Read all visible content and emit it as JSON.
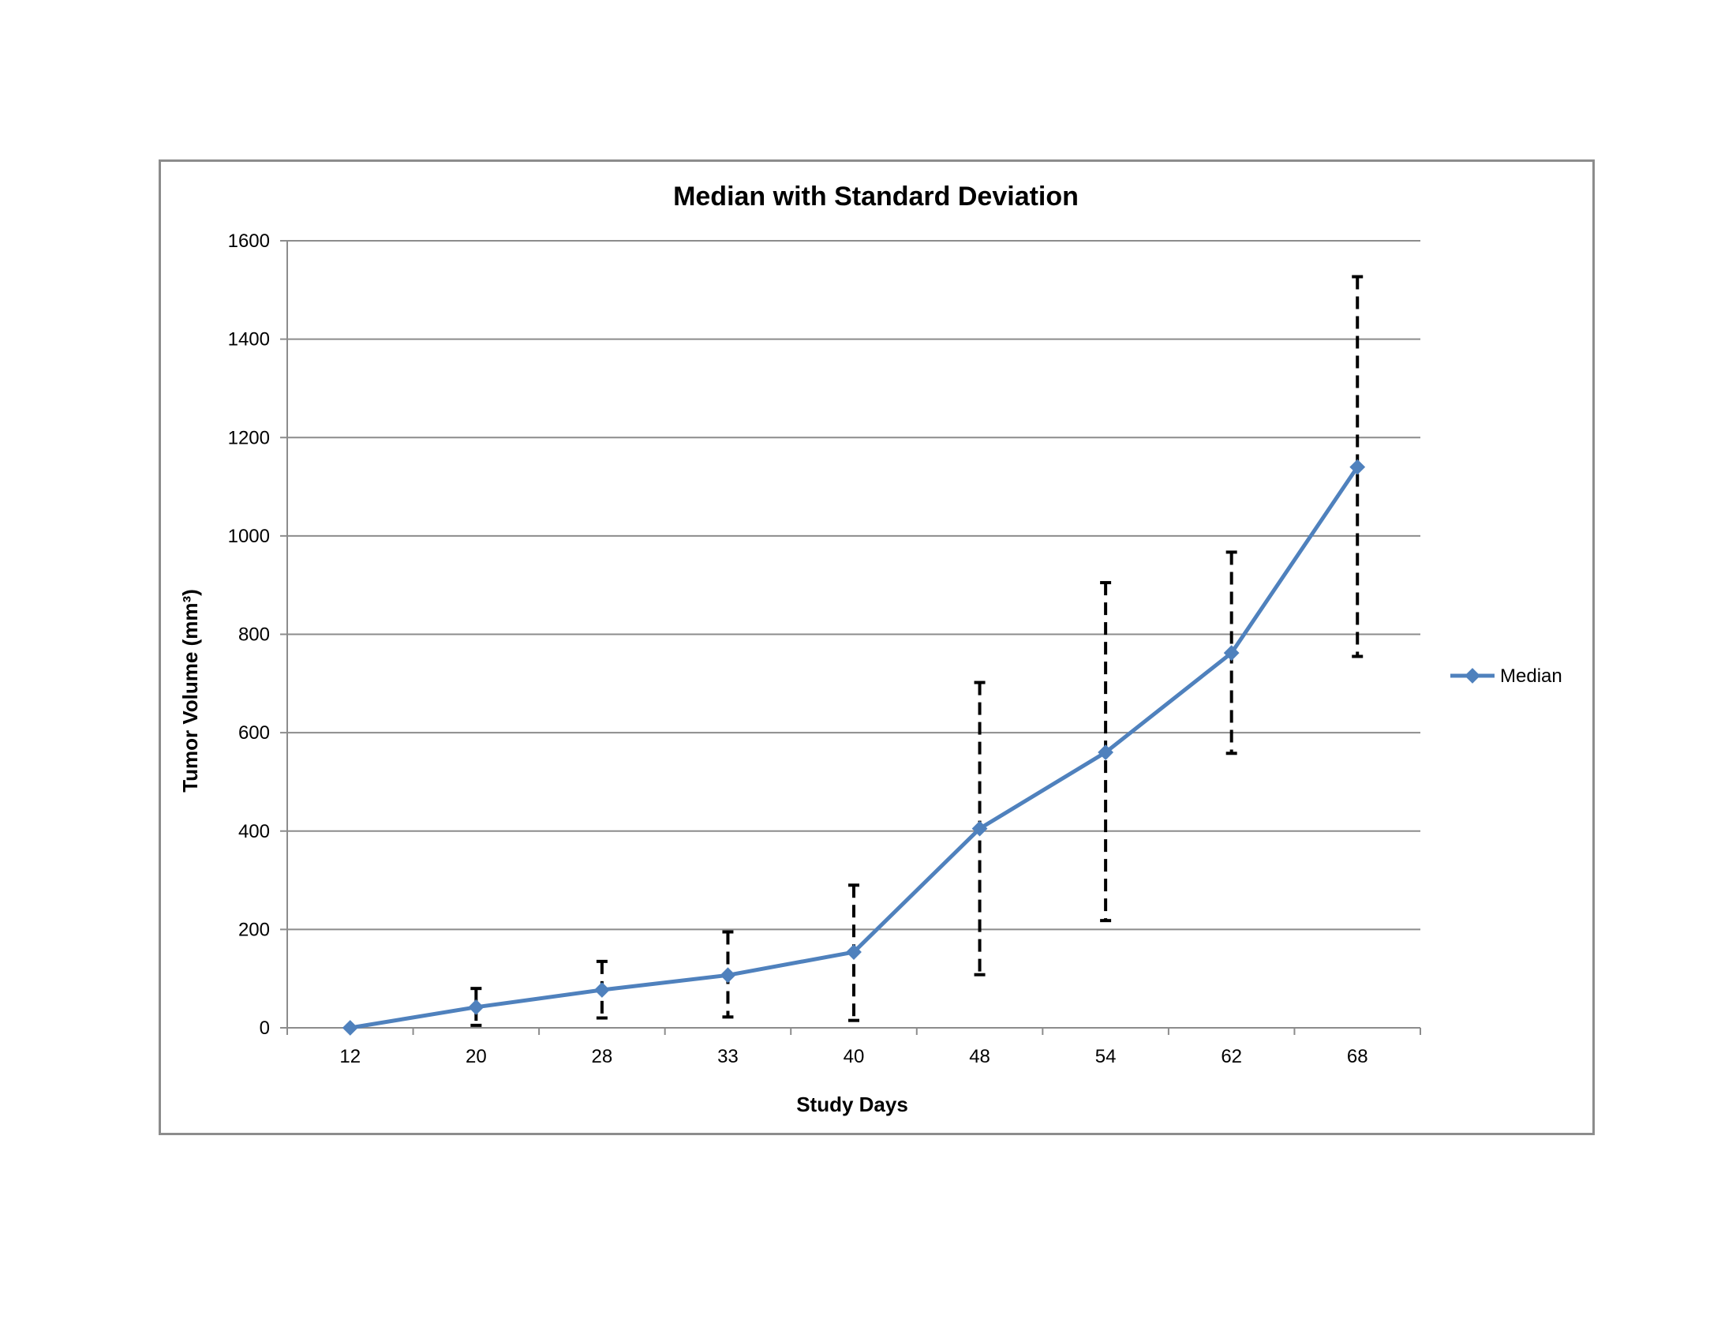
{
  "chart_data": {
    "type": "line",
    "title": "Median with Standard Deviation",
    "xlabel": "Study Days",
    "ylabel": "Tumor Volume (mm³)",
    "categories": [
      "12",
      "20",
      "28",
      "33",
      "40",
      "48",
      "54",
      "62",
      "68"
    ],
    "ylim": [
      0,
      1600
    ],
    "yticks": [
      "0",
      "200",
      "400",
      "600",
      "800",
      "1000",
      "1200",
      "1400",
      "1600"
    ],
    "grid": true,
    "legend_position": "right",
    "series": [
      {
        "name": "Median",
        "color": "#4f81bd",
        "marker": "diamond",
        "values": [
          0,
          42,
          77,
          107,
          154,
          405,
          560,
          762,
          1140
        ],
        "error_bars": {
          "style": "dashed",
          "color": "#000000",
          "lower": [
            0,
            5,
            20,
            22,
            15,
            108,
            218,
            558,
            755
          ],
          "upper": [
            0,
            80,
            135,
            195,
            290,
            702,
            905,
            967,
            1527
          ]
        }
      }
    ]
  }
}
